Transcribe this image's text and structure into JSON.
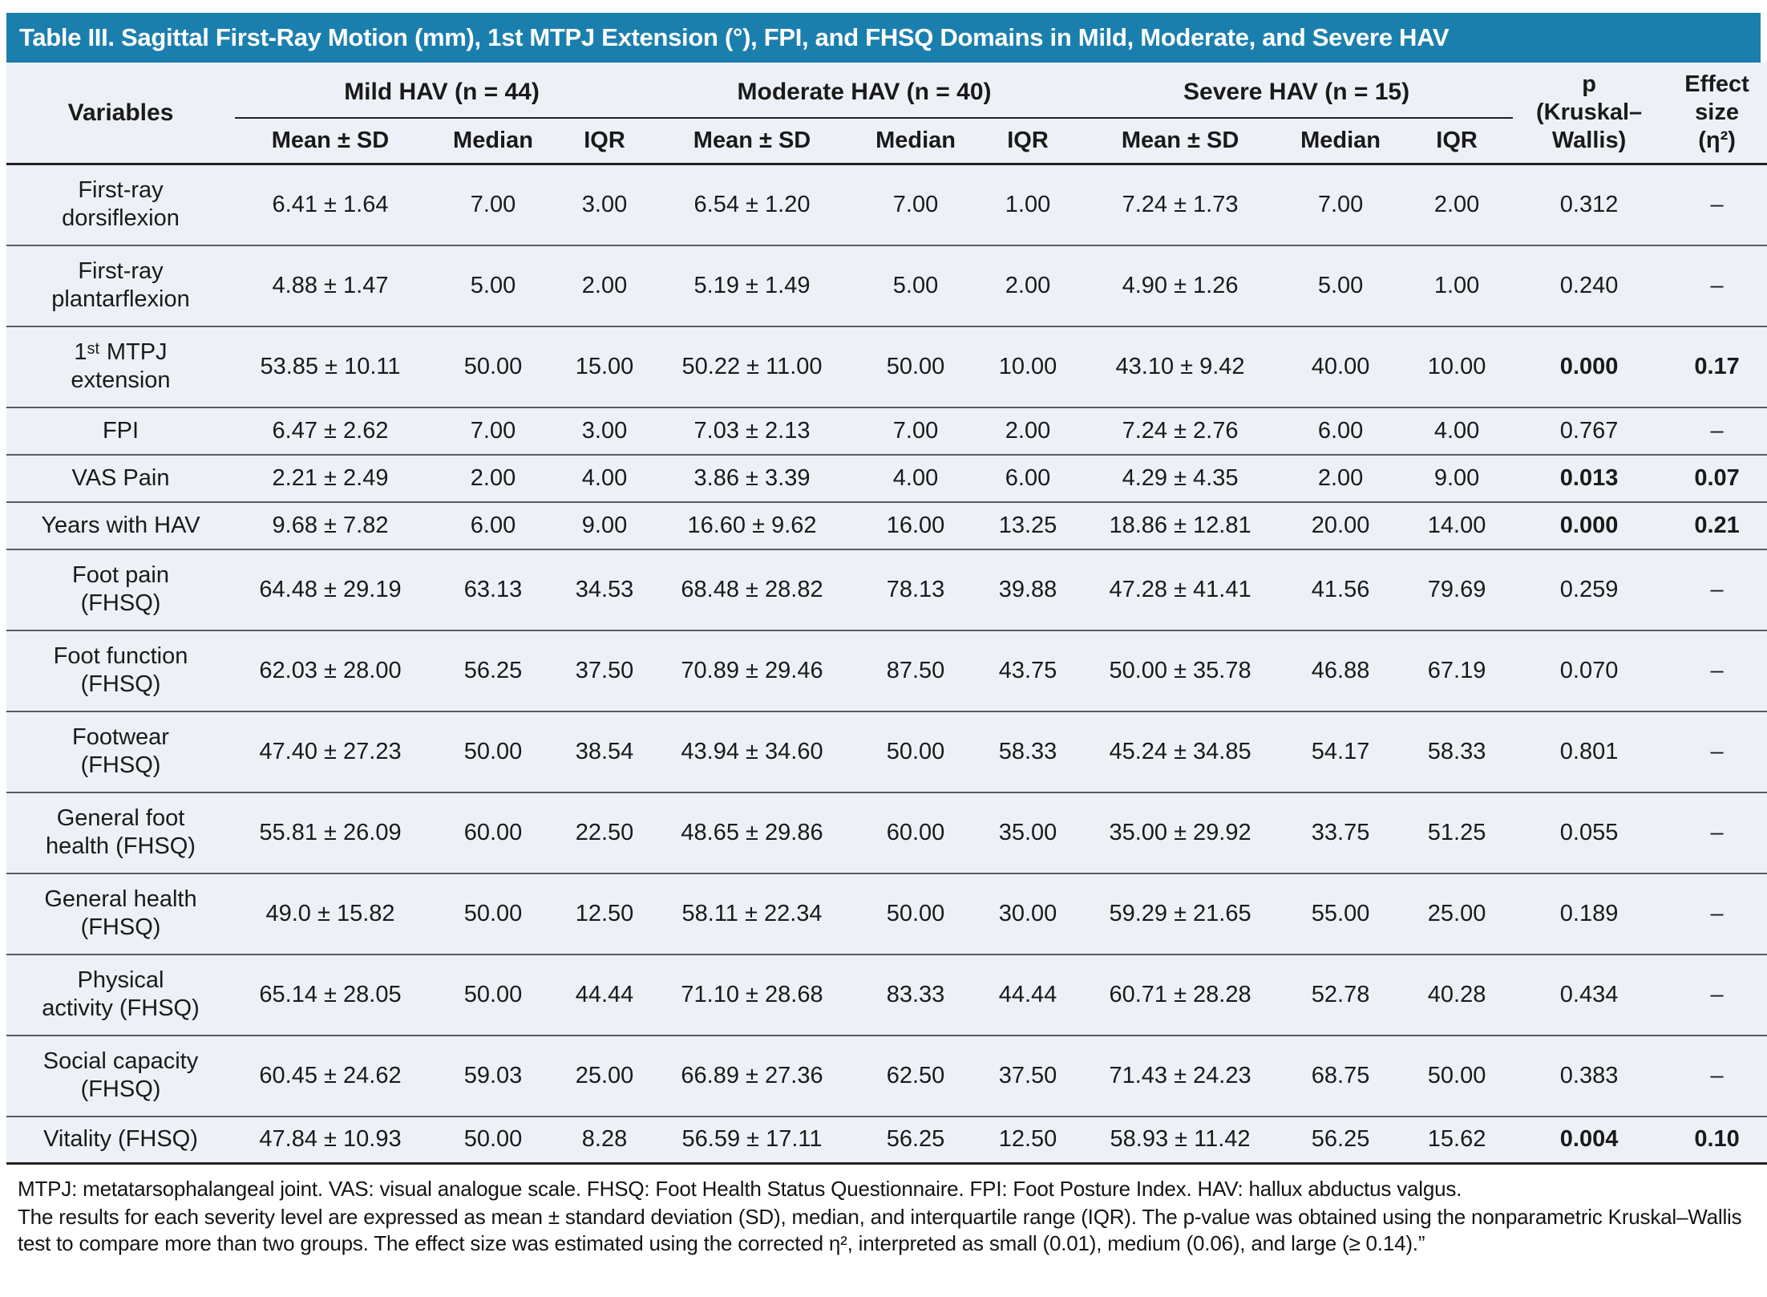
{
  "title": "Table III. Sagittal First-Ray Motion (mm), 1st MTPJ Extension (°), FPI, and FHSQ Domains in Mild, Moderate, and Severe HAV",
  "colors": {
    "header_bar": "#1b7fae",
    "table_background": "#edf1f7",
    "rule_dark": "#222222",
    "rule_gray": "#595a5e"
  },
  "header": {
    "variables_label": "Variables",
    "groups": [
      "Mild HAV (n = 44)",
      "Moderate HAV (n = 40)",
      "Severe HAV (n = 15)"
    ],
    "subheaders": [
      "Mean ± SD",
      "Median",
      "IQR"
    ],
    "p_label": "p\n(Kruskal–\nWallis)",
    "effect_label": "Effect\nsize\n(η²)"
  },
  "rows": [
    {
      "variable": "First-ray\ndorsiflexion",
      "mild": [
        "6.41 ± 1.64",
        "7.00",
        "3.00"
      ],
      "moderate": [
        "6.54 ± 1.20",
        "7.00",
        "1.00"
      ],
      "severe": [
        "7.24 ± 1.73",
        "7.00",
        "2.00"
      ],
      "p": "0.312",
      "effect": "–",
      "significant": false
    },
    {
      "variable": "First-ray\nplantarflexion",
      "mild": [
        "4.88 ± 1.47",
        "5.00",
        "2.00"
      ],
      "moderate": [
        "5.19 ± 1.49",
        "5.00",
        "2.00"
      ],
      "severe": [
        "4.90 ± 1.26",
        "5.00",
        "1.00"
      ],
      "p": "0.240",
      "effect": "–",
      "significant": false
    },
    {
      "variable": "1ˢᵗ MTPJ\nextension",
      "mild": [
        "53.85 ± 10.11",
        "50.00",
        "15.00"
      ],
      "moderate": [
        "50.22 ± 11.00",
        "50.00",
        "10.00"
      ],
      "severe": [
        "43.10 ± 9.42",
        "40.00",
        "10.00"
      ],
      "p": "0.000",
      "effect": "0.17",
      "significant": true
    },
    {
      "variable": "FPI",
      "mild": [
        "6.47 ± 2.62",
        "7.00",
        "3.00"
      ],
      "moderate": [
        "7.03 ± 2.13",
        "7.00",
        "2.00"
      ],
      "severe": [
        "7.24 ± 2.76",
        "6.00",
        "4.00"
      ],
      "p": "0.767",
      "effect": "–",
      "significant": false
    },
    {
      "variable": "VAS Pain",
      "mild": [
        "2.21 ± 2.49",
        "2.00",
        "4.00"
      ],
      "moderate": [
        "3.86 ± 3.39",
        "4.00",
        "6.00"
      ],
      "severe": [
        "4.29 ± 4.35",
        "2.00",
        "9.00"
      ],
      "p": "0.013",
      "effect": "0.07",
      "significant": true
    },
    {
      "variable": "Years with HAV",
      "mild": [
        "9.68 ± 7.82",
        "6.00",
        "9.00"
      ],
      "moderate": [
        "16.60 ± 9.62",
        "16.00",
        "13.25"
      ],
      "severe": [
        "18.86 ± 12.81",
        "20.00",
        "14.00"
      ],
      "p": "0.000",
      "effect": "0.21",
      "significant": true
    },
    {
      "variable": "Foot pain\n(FHSQ)",
      "mild": [
        "64.48 ± 29.19",
        "63.13",
        "34.53"
      ],
      "moderate": [
        "68.48 ± 28.82",
        "78.13",
        "39.88"
      ],
      "severe": [
        "47.28 ± 41.41",
        "41.56",
        "79.69"
      ],
      "p": "0.259",
      "effect": "–",
      "significant": false
    },
    {
      "variable": "Foot function\n(FHSQ)",
      "mild": [
        "62.03 ± 28.00",
        "56.25",
        "37.50"
      ],
      "moderate": [
        "70.89 ± 29.46",
        "87.50",
        "43.75"
      ],
      "severe": [
        "50.00 ± 35.78",
        "46.88",
        "67.19"
      ],
      "p": "0.070",
      "effect": "–",
      "significant": false
    },
    {
      "variable": "Footwear\n(FHSQ)",
      "mild": [
        "47.40 ± 27.23",
        "50.00",
        "38.54"
      ],
      "moderate": [
        "43.94 ± 34.60",
        "50.00",
        "58.33"
      ],
      "severe": [
        "45.24 ± 34.85",
        "54.17",
        "58.33"
      ],
      "p": "0.801",
      "effect": "–",
      "significant": false
    },
    {
      "variable": "General foot\nhealth (FHSQ)",
      "mild": [
        "55.81 ± 26.09",
        "60.00",
        "22.50"
      ],
      "moderate": [
        "48.65 ± 29.86",
        "60.00",
        "35.00"
      ],
      "severe": [
        "35.00 ± 29.92",
        "33.75",
        "51.25"
      ],
      "p": "0.055",
      "effect": "–",
      "significant": false
    },
    {
      "variable": "General health\n(FHSQ)",
      "mild": [
        "49.0 ± 15.82",
        "50.00",
        "12.50"
      ],
      "moderate": [
        "58.11 ± 22.34",
        "50.00",
        "30.00"
      ],
      "severe": [
        "59.29 ± 21.65",
        "55.00",
        "25.00"
      ],
      "p": "0.189",
      "effect": "–",
      "significant": false
    },
    {
      "variable": "Physical\nactivity (FHSQ)",
      "mild": [
        "65.14 ± 28.05",
        "50.00",
        "44.44"
      ],
      "moderate": [
        "71.10 ± 28.68",
        "83.33",
        "44.44"
      ],
      "severe": [
        "60.71 ± 28.28",
        "52.78",
        "40.28"
      ],
      "p": "0.434",
      "effect": "–",
      "significant": false
    },
    {
      "variable": "Social capacity\n(FHSQ)",
      "mild": [
        "60.45 ± 24.62",
        "59.03",
        "25.00"
      ],
      "moderate": [
        "66.89 ± 27.36",
        "62.50",
        "37.50"
      ],
      "severe": [
        "71.43 ± 24.23",
        "68.75",
        "50.00"
      ],
      "p": "0.383",
      "effect": "–",
      "significant": false
    },
    {
      "variable": "Vitality (FHSQ)",
      "mild": [
        "47.84 ± 10.93",
        "50.00",
        "8.28"
      ],
      "moderate": [
        "56.59 ± 17.11",
        "56.25",
        "12.50"
      ],
      "severe": [
        "58.93 ± 11.42",
        "56.25",
        "15.62"
      ],
      "p": "0.004",
      "effect": "0.10",
      "significant": true
    }
  ],
  "footnotes": [
    "MTPJ: metatarsophalangeal joint. VAS: visual analogue scale. FHSQ: Foot Health Status Questionnaire. FPI: Foot Posture Index. HAV: hallux abductus valgus.",
    "The results for each severity level are expressed as mean ± standard deviation (SD), median, and interquartile range (IQR). The p-value was obtained using the nonparametric Kruskal–Wallis test to compare more than two groups. The effect size was estimated using the corrected η², interpreted as small (0.01), medium (0.06), and large (≥ 0.14).”"
  ]
}
